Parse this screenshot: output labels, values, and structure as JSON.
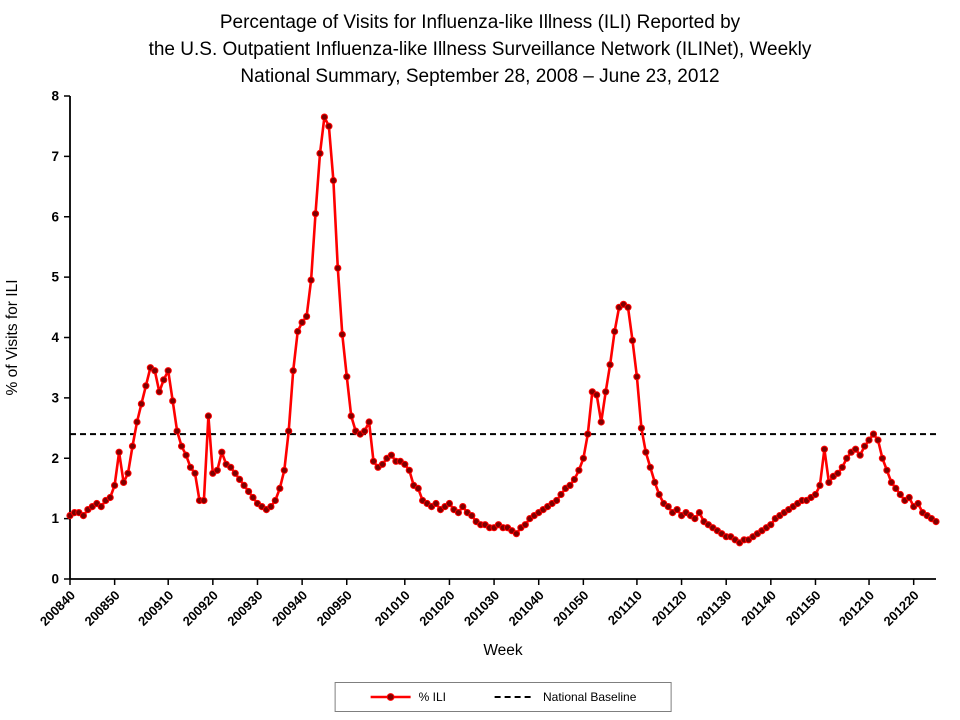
{
  "title": {
    "line1": "Percentage of Visits for Influenza-like Illness (ILI) Reported by",
    "line2": "the U.S. Outpatient Influenza-like Illness Surveillance Network (ILINet), Weekly",
    "line3": "National Summary, September 28, 2008 – June 23, 2012"
  },
  "chart_data": {
    "type": "line",
    "xlabel": "Week",
    "ylabel": "% of Visits for ILI",
    "ylim": [
      0,
      8
    ],
    "y_ticks": [
      0,
      1,
      2,
      3,
      4,
      5,
      6,
      7,
      8
    ],
    "x_tick_labels": [
      "200840",
      "200850",
      "200910",
      "200920",
      "200930",
      "200940",
      "200950",
      "201010",
      "201020",
      "201030",
      "201040",
      "201050",
      "201110",
      "201120",
      "201130",
      "201140",
      "201150",
      "201210",
      "201220"
    ],
    "baseline": {
      "label": "National Baseline",
      "value": 2.4,
      "color": "#000000",
      "dash": "6 4"
    },
    "series": [
      {
        "name": "% ILI",
        "line_color": "#FF0000",
        "marker_color": "#7F0000",
        "values_by_year": {
          "2008": {
            "start_week": 40,
            "values": [
              1.05,
              1.1,
              1.1,
              1.05,
              1.15,
              1.2,
              1.25,
              1.2,
              1.3,
              1.35,
              1.55,
              2.1,
              1.6
            ]
          },
          "2009": {
            "start_week": 1,
            "values": [
              1.75,
              2.2,
              2.6,
              2.9,
              3.2,
              3.5,
              3.45,
              3.1,
              3.3,
              3.45,
              2.95,
              2.45,
              2.2,
              2.05,
              1.85,
              1.75,
              1.3,
              1.3,
              2.7,
              1.75,
              1.8,
              2.1,
              1.9,
              1.85,
              1.75,
              1.65,
              1.55,
              1.45,
              1.35,
              1.25,
              1.2,
              1.15,
              1.2,
              1.3,
              1.5,
              1.8,
              2.45,
              3.45,
              4.1,
              4.25,
              4.35,
              4.95,
              6.05,
              7.05,
              7.65,
              7.5,
              6.6,
              5.15,
              4.05,
              3.35,
              2.7,
              2.45,
              2.4
            ]
          },
          "2010": {
            "start_week": 1,
            "values": [
              2.45,
              2.6,
              1.95,
              1.85,
              1.9,
              2.0,
              2.05,
              1.95,
              1.95,
              1.9,
              1.8,
              1.55,
              1.5,
              1.3,
              1.25,
              1.2,
              1.25,
              1.15,
              1.2,
              1.25,
              1.15,
              1.1,
              1.2,
              1.1,
              1.05,
              0.95,
              0.9,
              0.9,
              0.85,
              0.85,
              0.9,
              0.85,
              0.85,
              0.8,
              0.75,
              0.85,
              0.9,
              1.0,
              1.05,
              1.1,
              1.15,
              1.2,
              1.25,
              1.3,
              1.4,
              1.5,
              1.55,
              1.65,
              1.8,
              2.0,
              2.4,
              3.1
            ]
          },
          "2011": {
            "start_week": 1,
            "values": [
              3.05,
              2.6,
              3.1,
              3.55,
              4.1,
              4.5,
              4.55,
              4.5,
              3.95,
              3.35,
              2.5,
              2.1,
              1.85,
              1.6,
              1.4,
              1.25,
              1.2,
              1.1,
              1.15,
              1.05,
              1.1,
              1.05,
              1.0,
              1.1,
              0.95,
              0.9,
              0.85,
              0.8,
              0.75,
              0.7,
              0.7,
              0.65,
              0.6,
              0.65,
              0.65,
              0.7,
              0.75,
              0.8,
              0.85,
              0.9,
              1.0,
              1.05,
              1.1,
              1.15,
              1.2,
              1.25,
              1.3,
              1.3,
              1.35,
              1.4,
              1.55,
              2.15
            ]
          },
          "2012": {
            "start_week": 1,
            "values": [
              1.6,
              1.7,
              1.75,
              1.85,
              2.0,
              2.1,
              2.15,
              2.05,
              2.2,
              2.3,
              2.4,
              2.3,
              2.0,
              1.8,
              1.6,
              1.5,
              1.4,
              1.3,
              1.35,
              1.2,
              1.25,
              1.1,
              1.05,
              1.0,
              0.95
            ]
          }
        }
      }
    ]
  }
}
